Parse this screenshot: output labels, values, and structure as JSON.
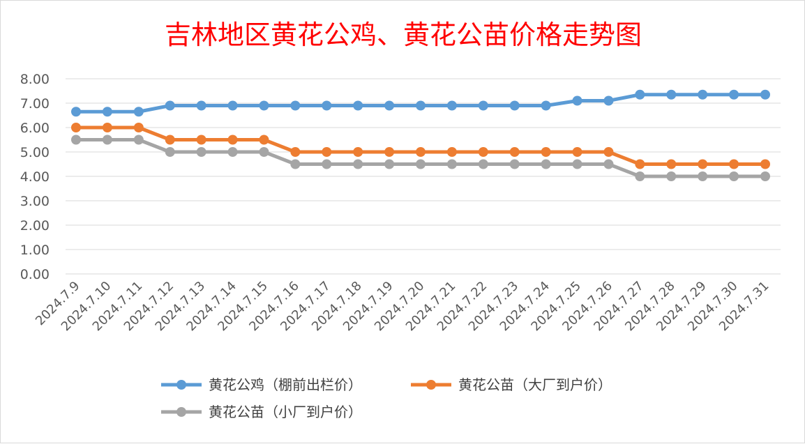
{
  "chart_data": {
    "type": "line",
    "title": "吉林地区黄花公鸡、黄花公苗价格走势图",
    "xlabel": "",
    "ylabel": "",
    "ylim": [
      0,
      8
    ],
    "yticks": [
      "0.00",
      "1.00",
      "2.00",
      "3.00",
      "4.00",
      "5.00",
      "6.00",
      "7.00",
      "8.00"
    ],
    "grid": true,
    "legend_position": "bottom",
    "categories": [
      "2024.7.9",
      "2024.7.10",
      "2024.7.11",
      "2024.7.12",
      "2024.7.13",
      "2024.7.14",
      "2024.7.15",
      "2024.7.16",
      "2024.7.17",
      "2024.7.18",
      "2024.7.19",
      "2024.7.20",
      "2024.7.21",
      "2024.7.22",
      "2024.7.23",
      "2024.7.24",
      "2024.7.25",
      "2024.7.26",
      "2024.7.27",
      "2024.7.28",
      "2024.7.29",
      "2024.7.30",
      "2024.7.31"
    ],
    "series": [
      {
        "name": "黄花公鸡（棚前出栏价）",
        "color": "#5b9bd5",
        "values": [
          6.65,
          6.65,
          6.65,
          6.9,
          6.9,
          6.9,
          6.9,
          6.9,
          6.9,
          6.9,
          6.9,
          6.9,
          6.9,
          6.9,
          6.9,
          6.9,
          7.1,
          7.1,
          7.35,
          7.35,
          7.35,
          7.35,
          7.35
        ]
      },
      {
        "name": "黄花公苗（大厂到户价）",
        "color": "#ed7d31",
        "values": [
          6.0,
          6.0,
          6.0,
          5.5,
          5.5,
          5.5,
          5.5,
          5.0,
          5.0,
          5.0,
          5.0,
          5.0,
          5.0,
          5.0,
          5.0,
          5.0,
          5.0,
          5.0,
          4.5,
          4.5,
          4.5,
          4.5,
          4.5
        ]
      },
      {
        "name": "黄花公苗（小厂到户价）",
        "color": "#a5a5a5",
        "values": [
          5.5,
          5.5,
          5.5,
          5.0,
          5.0,
          5.0,
          5.0,
          4.5,
          4.5,
          4.5,
          4.5,
          4.5,
          4.5,
          4.5,
          4.5,
          4.5,
          4.5,
          4.5,
          4.0,
          4.0,
          4.0,
          4.0,
          4.0
        ]
      }
    ]
  }
}
